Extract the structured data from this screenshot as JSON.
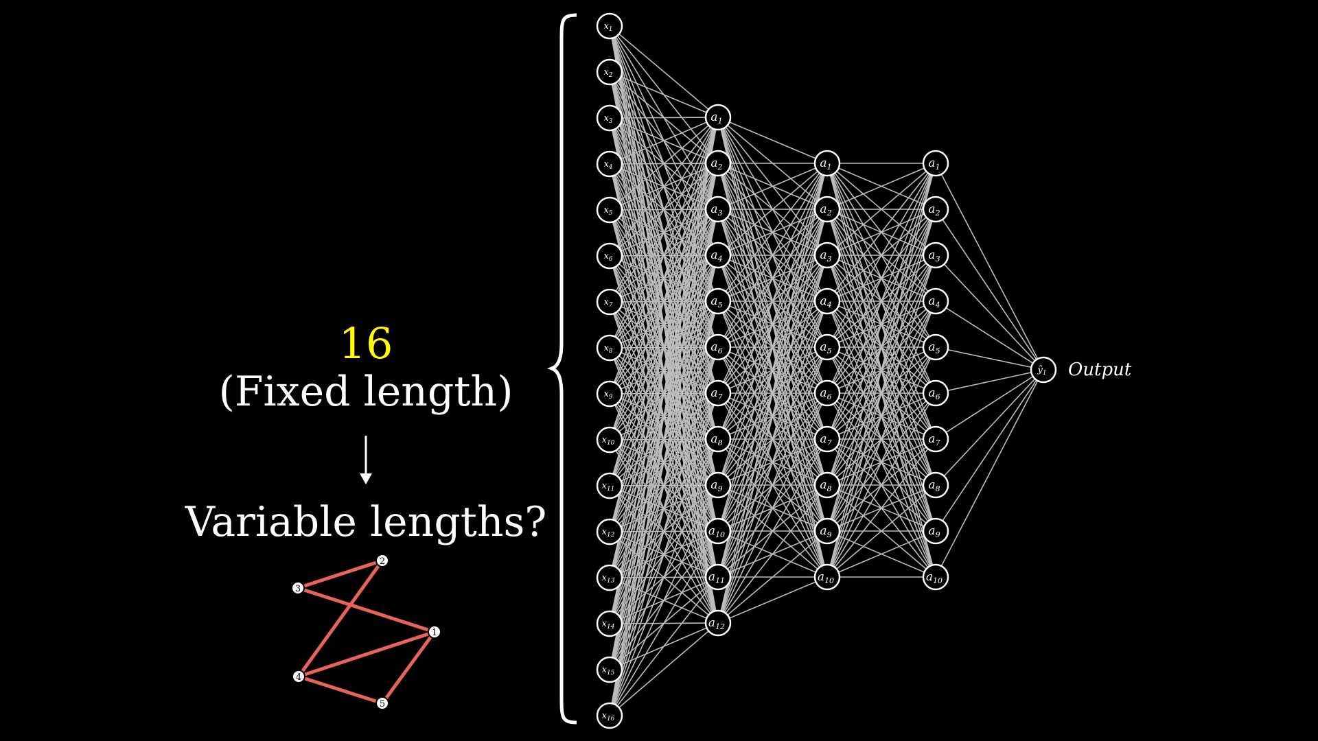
{
  "left_panel": {
    "count": "16",
    "count_color": "#ffff00",
    "fixed_label": "(Fixed length)",
    "variable_label": "Variable lengths?"
  },
  "graph": {
    "edge_color": "#e8645a",
    "nodes": [
      "1",
      "2",
      "3",
      "4",
      "5"
    ],
    "edges": [
      [
        "3",
        "2"
      ],
      [
        "3",
        "1"
      ],
      [
        "2",
        "4"
      ],
      [
        "4",
        "1"
      ],
      [
        "4",
        "5"
      ],
      [
        "5",
        "1"
      ]
    ]
  },
  "network": {
    "input_labels": [
      "x1",
      "x2",
      "x3",
      "x4",
      "x5",
      "x6",
      "x7",
      "x8",
      "x9",
      "x10",
      "x11",
      "x12",
      "x13",
      "x14",
      "x15",
      "x16"
    ],
    "hidden1_labels": [
      "a1",
      "a2",
      "a3",
      "a4",
      "a5",
      "a6",
      "a7",
      "a8",
      "a9",
      "a10",
      "a11",
      "a12"
    ],
    "hidden2_labels": [
      "a1",
      "a2",
      "a3",
      "a4",
      "a5",
      "a6",
      "a7",
      "a8",
      "a9",
      "a10"
    ],
    "hidden3_labels": [
      "a1",
      "a2",
      "a3",
      "a4",
      "a5",
      "a6",
      "a7",
      "a8",
      "a9",
      "a10"
    ],
    "output_node_label": "ŷ1",
    "output_text": "Output",
    "edge_color": "#bdbdbd"
  }
}
